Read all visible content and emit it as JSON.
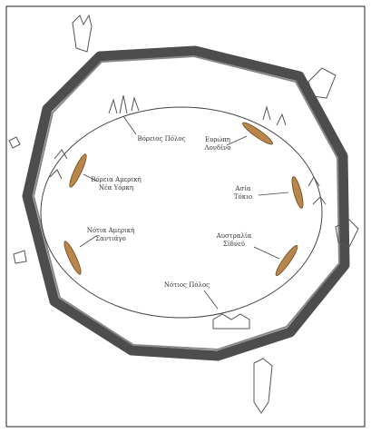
{
  "labels": {
    "north_pole": "Βόρειος Πόλος",
    "europe": [
      "Ευρώπη",
      "Λονδίνο"
    ],
    "asia": [
      "Ασία",
      "Τόκιο"
    ],
    "australia": [
      "Αυστραλία",
      "Σίδνεϋ"
    ],
    "north_america": [
      "Βόρεια Αμερική",
      "Νέα Υόρκη"
    ],
    "south_america": [
      "Νότια Αμερική",
      "Σαντιάγο"
    ],
    "south_pole": "Νότιος Πόλος"
  }
}
